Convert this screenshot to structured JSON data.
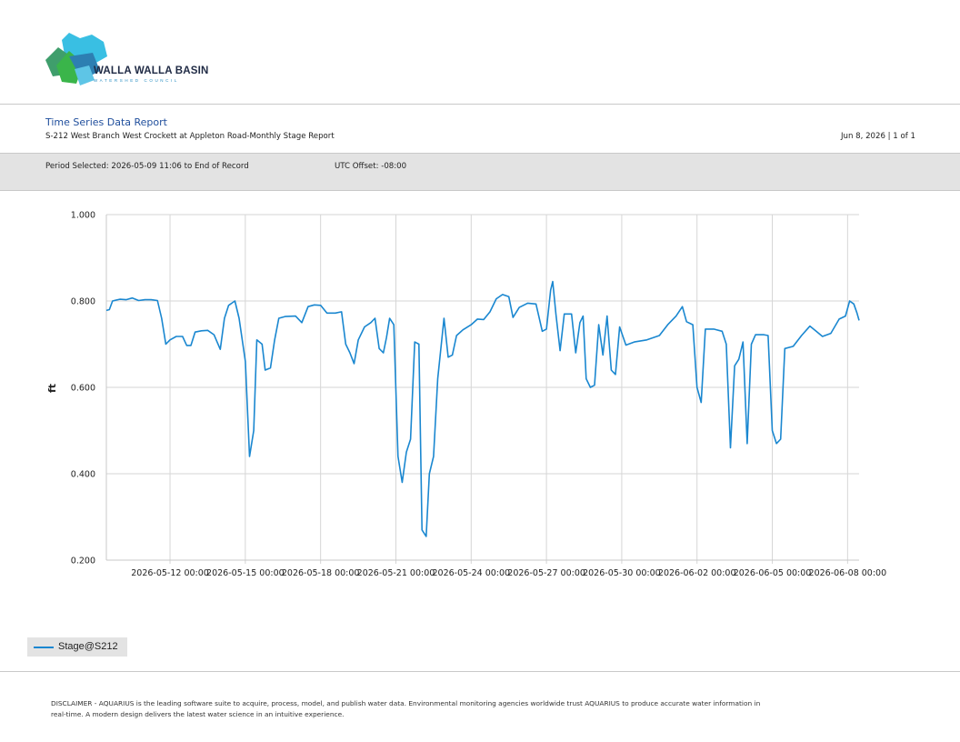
{
  "header": {
    "logo_text": "WALLA WALLA BASIN",
    "logo_subtext": "WATERSHED COUNCIL",
    "report_title": "Time Series Data Report",
    "report_subtitle": "S-212 West Branch West Crockett at Appleton Road-Monthly Stage Report",
    "report_date": "Jun 8, 2026 | 1 of 1",
    "period_selected": "Period Selected: 2026-05-09 11:06 to End of Record",
    "utc_offset": "UTC Offset: -08:00"
  },
  "legend": {
    "label": "Stage@S212"
  },
  "disclaimer": "DISCLAIMER - AQUARIUS is the leading software suite to acquire, process, model, and publish water data. Environmental monitoring agencies worldwide trust AQUARIUS to produce accurate water information in real-time. A modern design delivers the latest water science in an intuitive experience.",
  "colors": {
    "series": "#1a87d0",
    "band": "#e3e3e3",
    "title": "#1f4e9c"
  },
  "chart_data": {
    "type": "line",
    "title": "",
    "xlabel": "",
    "ylabel": "ft",
    "ylim": [
      0.2,
      1.0
    ],
    "xlim": [
      "2026-05-09 11:06",
      "2026-06-08 11:00"
    ],
    "y_ticks": [
      "0.200",
      "0.400",
      "0.600",
      "0.800",
      "1.000"
    ],
    "x_ticks": [
      "2026-05-12 00:00",
      "2026-05-15 00:00",
      "2026-05-18 00:00",
      "2026-05-21 00:00",
      "2026-05-24 00:00",
      "2026-05-27 00:00",
      "2026-05-30 00:00",
      "2026-06-02 00:00",
      "2026-06-05 00:00",
      "2026-06-08 00:00"
    ],
    "grid": true,
    "legend_position": "bottom-left",
    "series": [
      {
        "name": "Stage@S212",
        "points": [
          [
            "2026-05-09 11:06",
            0.778
          ],
          [
            "2026-05-09 14:00",
            0.78
          ],
          [
            "2026-05-09 17:00",
            0.8
          ],
          [
            "2026-05-10 00:00",
            0.804
          ],
          [
            "2026-05-10 06:00",
            0.803
          ],
          [
            "2026-05-10 12:00",
            0.807
          ],
          [
            "2026-05-10 18:00",
            0.801
          ],
          [
            "2026-05-11 00:00",
            0.803
          ],
          [
            "2026-05-11 06:00",
            0.803
          ],
          [
            "2026-05-11 12:00",
            0.801
          ],
          [
            "2026-05-11 16:00",
            0.76
          ],
          [
            "2026-05-11 20:00",
            0.7
          ],
          [
            "2026-05-12 00:00",
            0.71
          ],
          [
            "2026-05-12 06:00",
            0.718
          ],
          [
            "2026-05-12 12:00",
            0.718
          ],
          [
            "2026-05-12 16:00",
            0.697
          ],
          [
            "2026-05-12 20:00",
            0.697
          ],
          [
            "2026-05-13 00:00",
            0.728
          ],
          [
            "2026-05-13 06:00",
            0.731
          ],
          [
            "2026-05-13 12:00",
            0.732
          ],
          [
            "2026-05-13 18:00",
            0.722
          ],
          [
            "2026-05-14 00:00",
            0.688
          ],
          [
            "2026-05-14 04:00",
            0.76
          ],
          [
            "2026-05-14 08:00",
            0.79
          ],
          [
            "2026-05-14 14:00",
            0.8
          ],
          [
            "2026-05-14 18:00",
            0.76
          ],
          [
            "2026-05-15 00:00",
            0.66
          ],
          [
            "2026-05-15 04:00",
            0.44
          ],
          [
            "2026-05-15 08:00",
            0.5
          ],
          [
            "2026-05-15 11:00",
            0.71
          ],
          [
            "2026-05-15 16:00",
            0.7
          ],
          [
            "2026-05-15 19:00",
            0.64
          ],
          [
            "2026-05-16 00:00",
            0.645
          ],
          [
            "2026-05-16 04:00",
            0.71
          ],
          [
            "2026-05-16 08:00",
            0.76
          ],
          [
            "2026-05-16 14:00",
            0.764
          ],
          [
            "2026-05-17 00:00",
            0.765
          ],
          [
            "2026-05-17 06:00",
            0.75
          ],
          [
            "2026-05-17 12:00",
            0.787
          ],
          [
            "2026-05-17 18:00",
            0.791
          ],
          [
            "2026-05-18 00:00",
            0.79
          ],
          [
            "2026-05-18 06:00",
            0.772
          ],
          [
            "2026-05-18 14:00",
            0.772
          ],
          [
            "2026-05-18 20:00",
            0.775
          ],
          [
            "2026-05-19 00:00",
            0.7
          ],
          [
            "2026-05-19 04:00",
            0.68
          ],
          [
            "2026-05-19 08:00",
            0.655
          ],
          [
            "2026-05-19 12:00",
            0.71
          ],
          [
            "2026-05-19 18:00",
            0.74
          ],
          [
            "2026-05-20 00:00",
            0.75
          ],
          [
            "2026-05-20 04:00",
            0.76
          ],
          [
            "2026-05-20 08:00",
            0.69
          ],
          [
            "2026-05-20 12:00",
            0.68
          ],
          [
            "2026-05-20 15:00",
            0.715
          ],
          [
            "2026-05-20 18:00",
            0.76
          ],
          [
            "2026-05-20 22:00",
            0.745
          ],
          [
            "2026-05-21 02:00",
            0.44
          ],
          [
            "2026-05-21 06:00",
            0.38
          ],
          [
            "2026-05-21 10:00",
            0.45
          ],
          [
            "2026-05-21 14:00",
            0.48
          ],
          [
            "2026-05-21 18:00",
            0.705
          ],
          [
            "2026-05-21 22:00",
            0.7
          ],
          [
            "2026-05-22 01:00",
            0.27
          ],
          [
            "2026-05-22 05:00",
            0.255
          ],
          [
            "2026-05-22 08:00",
            0.4
          ],
          [
            "2026-05-22 12:00",
            0.44
          ],
          [
            "2026-05-22 16:00",
            0.62
          ],
          [
            "2026-05-22 22:00",
            0.76
          ],
          [
            "2026-05-23 02:00",
            0.67
          ],
          [
            "2026-05-23 06:00",
            0.675
          ],
          [
            "2026-05-23 10:00",
            0.72
          ],
          [
            "2026-05-23 16:00",
            0.733
          ],
          [
            "2026-05-24 00:00",
            0.745
          ],
          [
            "2026-05-24 06:00",
            0.758
          ],
          [
            "2026-05-24 12:00",
            0.757
          ],
          [
            "2026-05-24 18:00",
            0.775
          ],
          [
            "2026-05-25 00:00",
            0.805
          ],
          [
            "2026-05-25 06:00",
            0.815
          ],
          [
            "2026-05-25 12:00",
            0.81
          ],
          [
            "2026-05-25 16:00",
            0.762
          ],
          [
            "2026-05-25 22:00",
            0.785
          ],
          [
            "2026-05-26 06:00",
            0.795
          ],
          [
            "2026-05-26 14:00",
            0.793
          ],
          [
            "2026-05-26 20:00",
            0.73
          ],
          [
            "2026-05-27 00:00",
            0.735
          ],
          [
            "2026-05-27 04:00",
            0.825
          ],
          [
            "2026-05-27 06:00",
            0.845
          ],
          [
            "2026-05-27 09:00",
            0.77
          ],
          [
            "2026-05-27 13:00",
            0.685
          ],
          [
            "2026-05-27 17:00",
            0.77
          ],
          [
            "2026-05-28 00:00",
            0.77
          ],
          [
            "2026-05-28 04:00",
            0.68
          ],
          [
            "2026-05-28 08:00",
            0.75
          ],
          [
            "2026-05-28 11:00",
            0.765
          ],
          [
            "2026-05-28 14:00",
            0.62
          ],
          [
            "2026-05-28 18:00",
            0.6
          ],
          [
            "2026-05-28 22:00",
            0.605
          ],
          [
            "2026-05-29 02:00",
            0.745
          ],
          [
            "2026-05-29 06:00",
            0.675
          ],
          [
            "2026-05-29 10:00",
            0.765
          ],
          [
            "2026-05-29 14:00",
            0.64
          ],
          [
            "2026-05-29 18:00",
            0.63
          ],
          [
            "2026-05-29 22:00",
            0.74
          ],
          [
            "2026-05-30 04:00",
            0.698
          ],
          [
            "2026-05-30 12:00",
            0.705
          ],
          [
            "2026-05-31 00:00",
            0.71
          ],
          [
            "2026-05-31 12:00",
            0.72
          ],
          [
            "2026-05-31 20:00",
            0.745
          ],
          [
            "2026-06-01 04:00",
            0.765
          ],
          [
            "2026-06-01 10:00",
            0.787
          ],
          [
            "2026-06-01 14:00",
            0.752
          ],
          [
            "2026-06-01 20:00",
            0.745
          ],
          [
            "2026-06-02 00:00",
            0.6
          ],
          [
            "2026-06-02 04:00",
            0.565
          ],
          [
            "2026-06-02 08:00",
            0.735
          ],
          [
            "2026-06-02 16:00",
            0.735
          ],
          [
            "2026-06-03 00:00",
            0.73
          ],
          [
            "2026-06-03 04:00",
            0.7
          ],
          [
            "2026-06-03 08:00",
            0.46
          ],
          [
            "2026-06-03 12:00",
            0.65
          ],
          [
            "2026-06-03 16:00",
            0.665
          ],
          [
            "2026-06-03 20:00",
            0.705
          ],
          [
            "2026-06-04 00:00",
            0.47
          ],
          [
            "2026-06-04 04:00",
            0.7
          ],
          [
            "2026-06-04 08:00",
            0.722
          ],
          [
            "2026-06-04 16:00",
            0.722
          ],
          [
            "2026-06-04 20:00",
            0.72
          ],
          [
            "2026-06-05 00:00",
            0.5
          ],
          [
            "2026-06-05 04:00",
            0.47
          ],
          [
            "2026-06-05 08:00",
            0.48
          ],
          [
            "2026-06-05 12:00",
            0.69
          ],
          [
            "2026-06-05 20:00",
            0.695
          ],
          [
            "2026-06-06 04:00",
            0.72
          ],
          [
            "2026-06-06 12:00",
            0.742
          ],
          [
            "2026-06-06 18:00",
            0.73
          ],
          [
            "2026-06-07 00:00",
            0.718
          ],
          [
            "2026-06-07 08:00",
            0.725
          ],
          [
            "2026-06-07 16:00",
            0.758
          ],
          [
            "2026-06-07 22:00",
            0.765
          ],
          [
            "2026-06-08 02:00",
            0.8
          ],
          [
            "2026-06-08 06:00",
            0.793
          ],
          [
            "2026-06-08 09:00",
            0.772
          ],
          [
            "2026-06-08 11:00",
            0.755
          ]
        ]
      }
    ]
  }
}
